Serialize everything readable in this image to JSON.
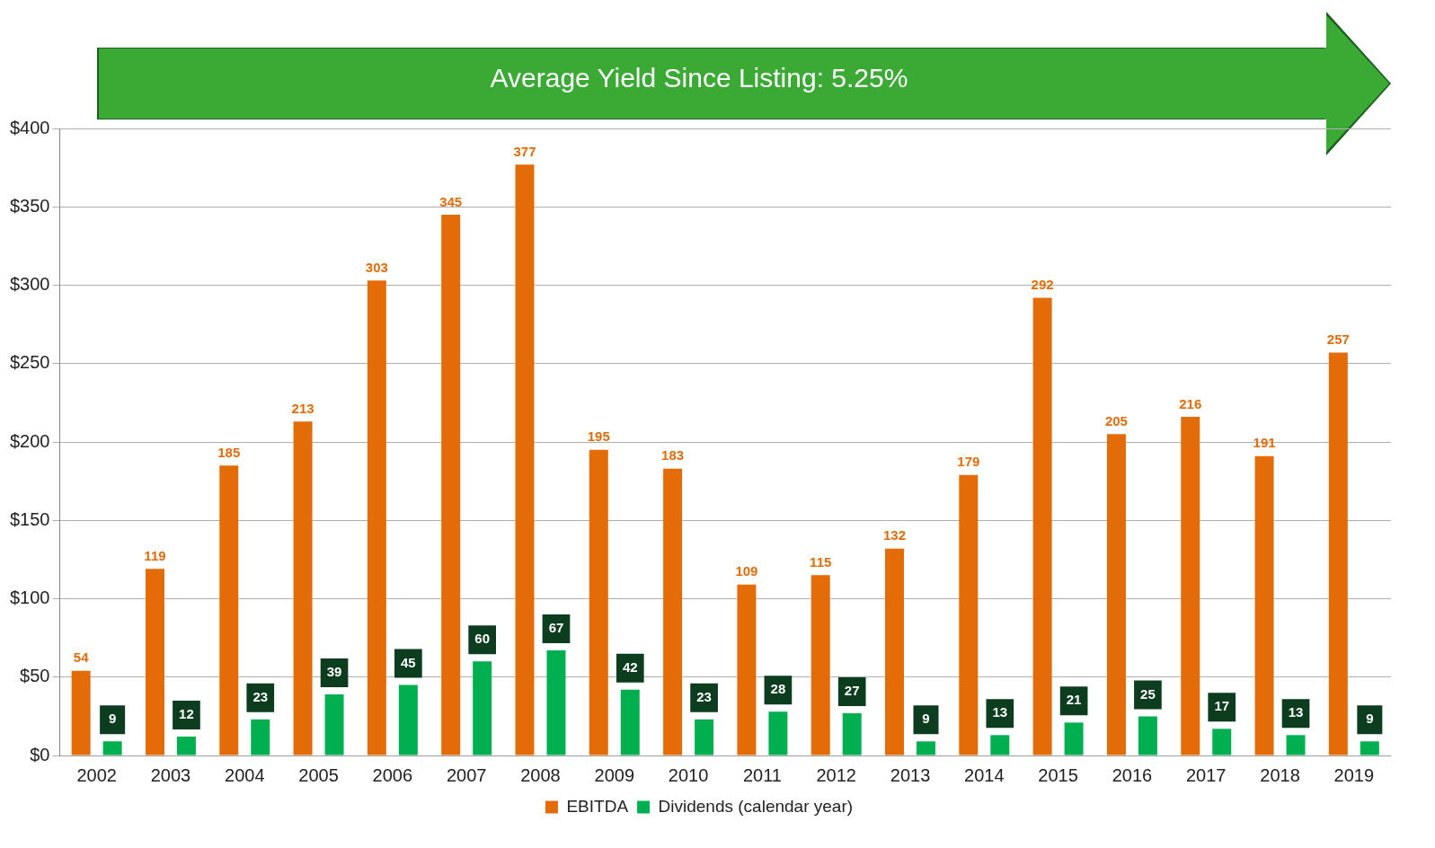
{
  "chart_data": {
    "type": "bar",
    "annotations": [
      "Average Yield Since Listing: 5.25%"
    ],
    "categories": [
      "2002",
      "2003",
      "2004",
      "2005",
      "2006",
      "2007",
      "2008",
      "2009",
      "2010",
      "2011",
      "2012",
      "2013",
      "2014",
      "2015",
      "2016",
      "2017",
      "2018",
      "2019"
    ],
    "series": [
      {
        "name": "EBITDA",
        "color": "#e36c09",
        "values": [
          54,
          119,
          185,
          213,
          303,
          345,
          377,
          195,
          183,
          109,
          115,
          132,
          179,
          292,
          205,
          216,
          191,
          257
        ]
      },
      {
        "name": "Dividends (calendar year)",
        "color": "#00b050",
        "values": [
          9,
          12,
          23,
          39,
          45,
          60,
          67,
          42,
          23,
          28,
          27,
          9,
          13,
          21,
          25,
          17,
          13,
          9
        ]
      }
    ],
    "ylim": [
      0,
      400
    ],
    "yticks": [
      {
        "value": 0,
        "label": "$0"
      },
      {
        "value": 50,
        "label": "$50"
      },
      {
        "value": 100,
        "label": "$100"
      },
      {
        "value": 150,
        "label": "$150"
      },
      {
        "value": 200,
        "label": "$200"
      },
      {
        "value": 250,
        "label": "$250"
      },
      {
        "value": 300,
        "label": "$300"
      },
      {
        "value": 350,
        "label": "$350"
      },
      {
        "value": 400,
        "label": "$400"
      }
    ],
    "grid": "y",
    "legend": "bottom",
    "data_labels": true
  }
}
